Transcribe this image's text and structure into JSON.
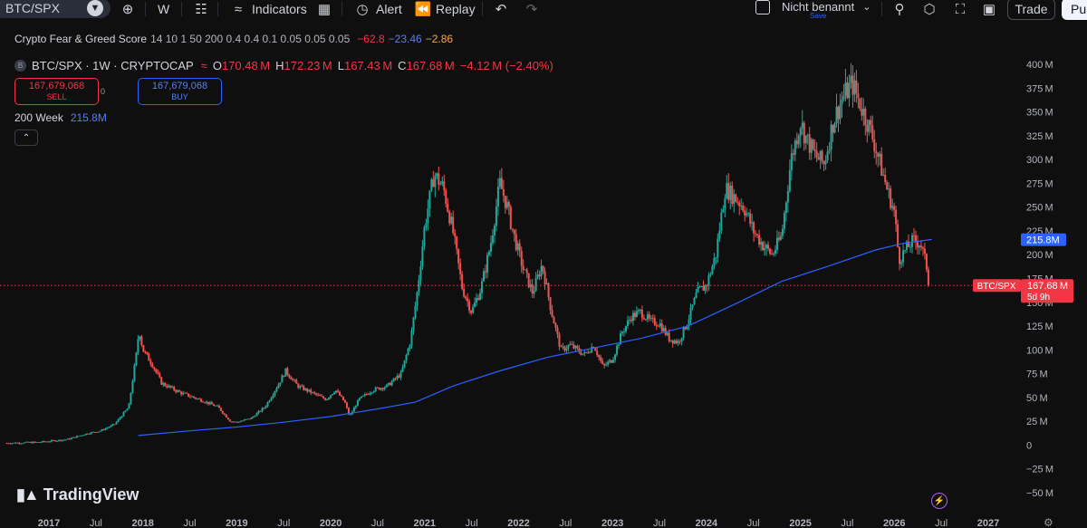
{
  "toolbar": {
    "symbol": "BTC/SPX",
    "interval": "W",
    "indicators_label": "Indicators",
    "alert_label": "Alert",
    "replay_label": "Replay",
    "layout_name": "Nicht benannt",
    "layout_save": "Save",
    "trade_label": "Trade",
    "publish_label": "Pul",
    "icons": [
      "add-symbol-icon",
      "candles-icon",
      "indicators-icon",
      "templates-icon",
      "alert-icon",
      "replay-icon",
      "undo-icon",
      "redo-icon",
      "search-icon",
      "settings-icon",
      "fullscreen-icon",
      "camera-icon"
    ]
  },
  "fear_greed": {
    "name": "Crypto Fear & Greed Score",
    "params": "14 10 1 50 200 0.4 0.4 0.1 0.05 0.05 0.05",
    "v1": "−62.8",
    "v2": "−23.46",
    "v3": "−2.86"
  },
  "legend": {
    "badge": "B",
    "title": "BTC/SPX · 1W · CRYPTOCAP",
    "o_label": "O",
    "o": "170.48 M",
    "h_label": "H",
    "h": "172.23 M",
    "l_label": "L",
    "l": "167.43 M",
    "c_label": "C",
    "c": "167.68 M",
    "change": "−4.12 M (−2.40%)"
  },
  "trade_boxes": {
    "sell_price": "167,679,068",
    "sell_label": "SELL",
    "spread": "0",
    "buy_price": "167,679,068",
    "buy_label": "BUY"
  },
  "ma_legend": {
    "name": "200 Week",
    "value": "215.8M"
  },
  "logo_text": "TradingView",
  "colors": {
    "up": "#26a69a",
    "down": "#ef5350",
    "ma": "#2962ff",
    "price_line": "#f23645",
    "background": "#0f0f0f"
  },
  "chart_data": {
    "type": "candlestick",
    "title": "BTC/SPX · 1W · CRYPTOCAP",
    "ylim": [
      -55,
      405
    ],
    "y_unit": "M",
    "y_ticks": [
      "400 M",
      "375 M",
      "350 M",
      "325 M",
      "300 M",
      "275 M",
      "250 M",
      "225 M",
      "200 M",
      "175 M",
      "150 M",
      "125 M",
      "100 M",
      "75 M",
      "50 M",
      "25 M",
      "0",
      "−25 M",
      "−50 M"
    ],
    "y_tick_values": [
      400,
      375,
      350,
      325,
      300,
      275,
      250,
      225,
      200,
      175,
      150,
      125,
      100,
      75,
      50,
      25,
      0,
      -25,
      -50
    ],
    "x_ticks": [
      "2017",
      "Jul",
      "2018",
      "Jul",
      "2019",
      "Jul",
      "2020",
      "Jul",
      "2021",
      "Jul",
      "2022",
      "Jul",
      "2023",
      "Jul",
      "2024",
      "Jul",
      "2025",
      "Jul",
      "2026",
      "Jul",
      "2027"
    ],
    "x_tick_values": [
      2017.0,
      2017.5,
      2018.0,
      2018.5,
      2019.0,
      2019.5,
      2020.0,
      2020.5,
      2021.0,
      2021.5,
      2022.0,
      2022.5,
      2023.0,
      2023.5,
      2024.0,
      2024.5,
      2025.0,
      2025.5,
      2026.0,
      2026.5,
      2027.0
    ],
    "xlim": [
      2016.55,
      2027.45
    ],
    "price_path": [
      [
        2016.55,
        2
      ],
      [
        2016.9,
        3
      ],
      [
        2017.2,
        6
      ],
      [
        2017.4,
        12
      ],
      [
        2017.55,
        15
      ],
      [
        2017.7,
        22
      ],
      [
        2017.85,
        40
      ],
      [
        2017.93,
        95
      ],
      [
        2017.96,
        122
      ],
      [
        2018.0,
        100
      ],
      [
        2018.1,
        85
      ],
      [
        2018.2,
        65
      ],
      [
        2018.4,
        55
      ],
      [
        2018.6,
        48
      ],
      [
        2018.8,
        40
      ],
      [
        2018.93,
        25
      ],
      [
        2019.0,
        24
      ],
      [
        2019.15,
        28
      ],
      [
        2019.3,
        40
      ],
      [
        2019.45,
        65
      ],
      [
        2019.52,
        78
      ],
      [
        2019.65,
        62
      ],
      [
        2019.8,
        55
      ],
      [
        2019.95,
        48
      ],
      [
        2020.05,
        58
      ],
      [
        2020.15,
        45
      ],
      [
        2020.2,
        30
      ],
      [
        2020.3,
        48
      ],
      [
        2020.45,
        58
      ],
      [
        2020.6,
        62
      ],
      [
        2020.75,
        75
      ],
      [
        2020.85,
        110
      ],
      [
        2020.92,
        160
      ],
      [
        2021.0,
        230
      ],
      [
        2021.1,
        285
      ],
      [
        2021.2,
        270
      ],
      [
        2021.3,
        225
      ],
      [
        2021.4,
        165
      ],
      [
        2021.5,
        140
      ],
      [
        2021.6,
        165
      ],
      [
        2021.7,
        210
      ],
      [
        2021.8,
        275
      ],
      [
        2021.88,
        250
      ],
      [
        2021.95,
        220
      ],
      [
        2022.05,
        185
      ],
      [
        2022.15,
        160
      ],
      [
        2022.25,
        190
      ],
      [
        2022.35,
        140
      ],
      [
        2022.45,
        100
      ],
      [
        2022.55,
        105
      ],
      [
        2022.7,
        95
      ],
      [
        2022.8,
        105
      ],
      [
        2022.9,
        82
      ],
      [
        2023.0,
        90
      ],
      [
        2023.1,
        118
      ],
      [
        2023.2,
        135
      ],
      [
        2023.3,
        140
      ],
      [
        2023.4,
        130
      ],
      [
        2023.5,
        128
      ],
      [
        2023.6,
        112
      ],
      [
        2023.7,
        108
      ],
      [
        2023.8,
        130
      ],
      [
        2023.9,
        160
      ],
      [
        2024.0,
        168
      ],
      [
        2024.1,
        200
      ],
      [
        2024.2,
        270
      ],
      [
        2024.3,
        260
      ],
      [
        2024.4,
        250
      ],
      [
        2024.5,
        225
      ],
      [
        2024.6,
        210
      ],
      [
        2024.7,
        200
      ],
      [
        2024.8,
        220
      ],
      [
        2024.9,
        300
      ],
      [
        2025.0,
        340
      ],
      [
        2025.05,
        325
      ],
      [
        2025.15,
        305
      ],
      [
        2025.25,
        295
      ],
      [
        2025.35,
        340
      ],
      [
        2025.45,
        365
      ],
      [
        2025.55,
        380
      ],
      [
        2025.65,
        355
      ],
      [
        2025.75,
        330
      ],
      [
        2025.85,
        295
      ],
      [
        2025.92,
        270
      ],
      [
        2026.0,
        245
      ],
      [
        2026.05,
        195
      ],
      [
        2026.12,
        205
      ],
      [
        2026.2,
        215
      ],
      [
        2026.28,
        212
      ],
      [
        2026.35,
        185
      ],
      [
        2026.38,
        168
      ]
    ],
    "ma_200w": [
      [
        2017.95,
        10
      ],
      [
        2018.5,
        15
      ],
      [
        2019.0,
        19
      ],
      [
        2019.5,
        24
      ],
      [
        2020.0,
        30
      ],
      [
        2020.5,
        38
      ],
      [
        2020.9,
        45
      ],
      [
        2021.3,
        62
      ],
      [
        2021.8,
        78
      ],
      [
        2022.3,
        92
      ],
      [
        2022.8,
        102
      ],
      [
        2023.3,
        112
      ],
      [
        2023.8,
        125
      ],
      [
        2024.3,
        148
      ],
      [
        2024.8,
        172
      ],
      [
        2025.3,
        188
      ],
      [
        2025.8,
        205
      ],
      [
        2026.1,
        212
      ],
      [
        2026.4,
        216
      ]
    ],
    "last_price_label": "BTC/SPX",
    "last_price_value": "167.68 M",
    "last_price": 167.68,
    "countdown": "5d 9h",
    "ma_price_label": "215.8M",
    "ma_price": 215.8
  }
}
